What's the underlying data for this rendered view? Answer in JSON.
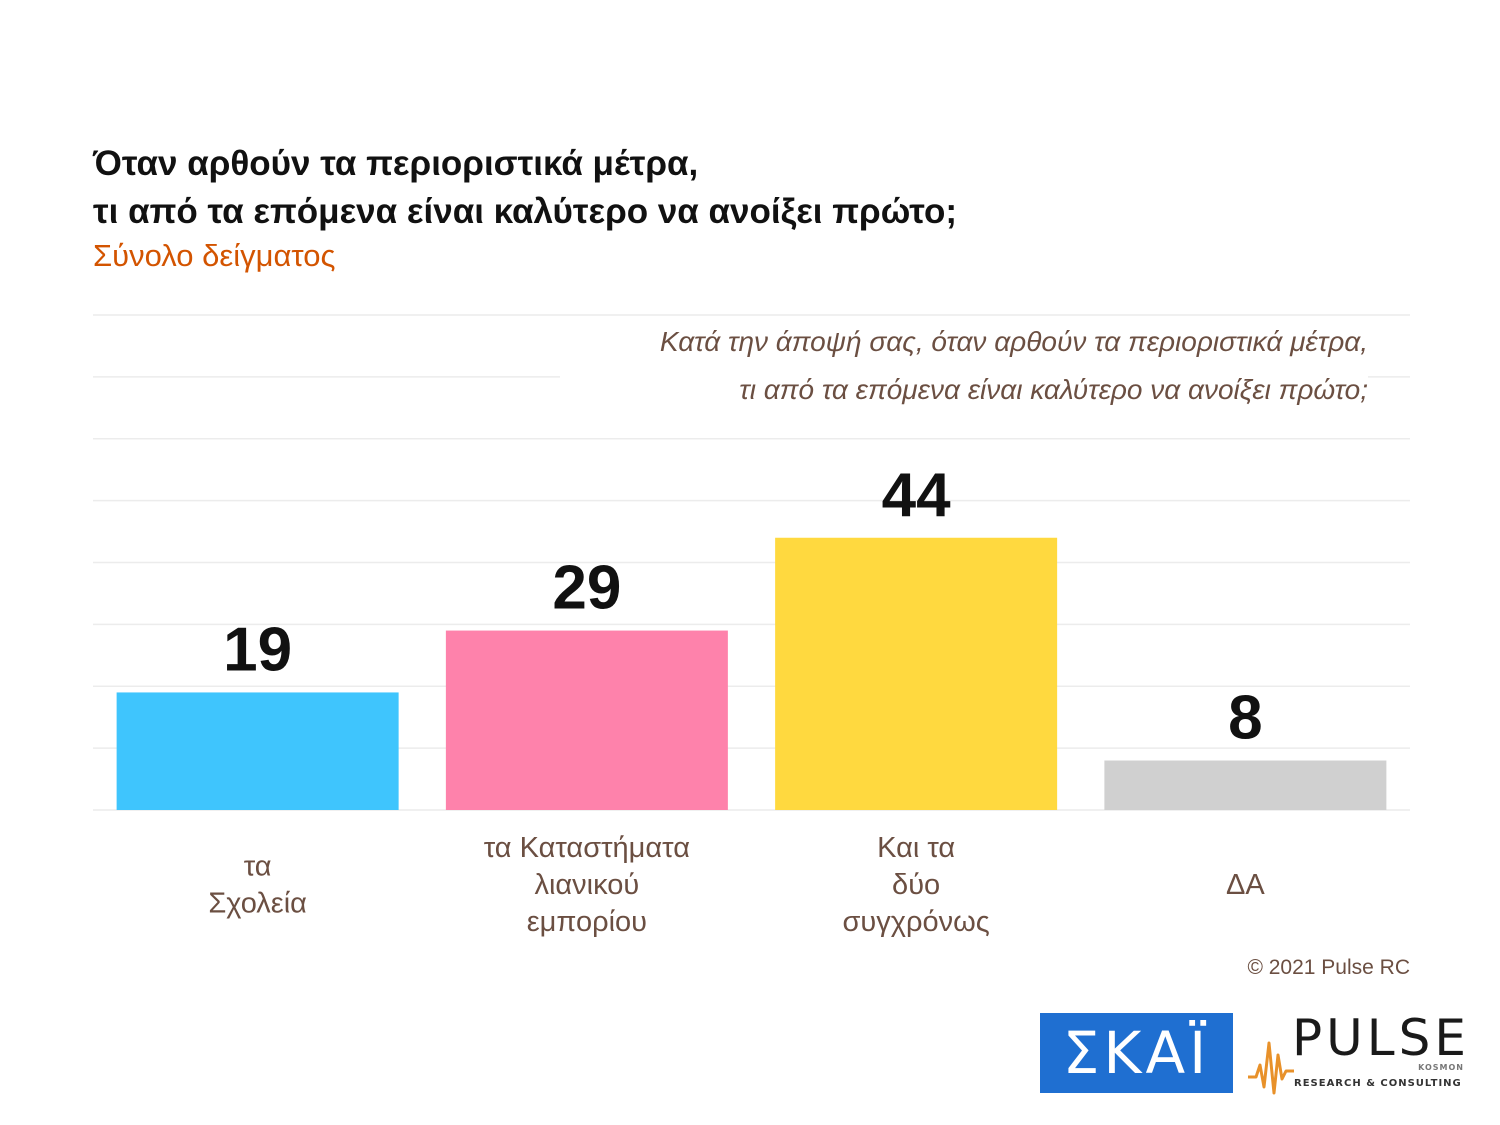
{
  "header": {
    "title_line1": "Όταν αρθούν τα περιοριστικά μέτρα,",
    "title_line2": "τι από τα επόμενα είναι καλύτερο να ανοίξει πρώτο;",
    "subtitle": "Σύνολο δείγματος"
  },
  "question": {
    "line1": "Κατά την άποψή σας, όταν αρθούν τα περιοριστικά μέτρα,",
    "line2": "τι από τα επόμενα είναι καλύτερο να ανοίξει πρώτο;"
  },
  "chart_data": {
    "type": "bar",
    "title": "Όταν αρθούν τα περιοριστικά μέτρα, τι από τα επόμενα είναι καλύτερο να ανοίξει πρώτο;",
    "categories": [
      [
        "τα",
        "Σχολεία"
      ],
      [
        "τα Καταστήματα",
        "λιανικού",
        "εμπορίου"
      ],
      [
        "Και τα",
        "δύο",
        "συγχρόνως"
      ],
      [
        "ΔΑ"
      ]
    ],
    "values": [
      19,
      29,
      44,
      8
    ],
    "colors": [
      "#3fc5fd",
      "#fe82ab",
      "#ffd93f",
      "#d0d0d0"
    ],
    "xlabel": "",
    "ylabel": "",
    "ylim": [
      0,
      80
    ],
    "grid": true,
    "legend": "none"
  },
  "footer": {
    "copyright": "© 2021 Pulse RC",
    "logo_skai": "ΣΚΑΪ",
    "logo_pulse": "PULSE",
    "logo_pulse_kosmon": "KOSMON",
    "logo_pulse_tagline": "RESEARCH & CONSULTING"
  }
}
